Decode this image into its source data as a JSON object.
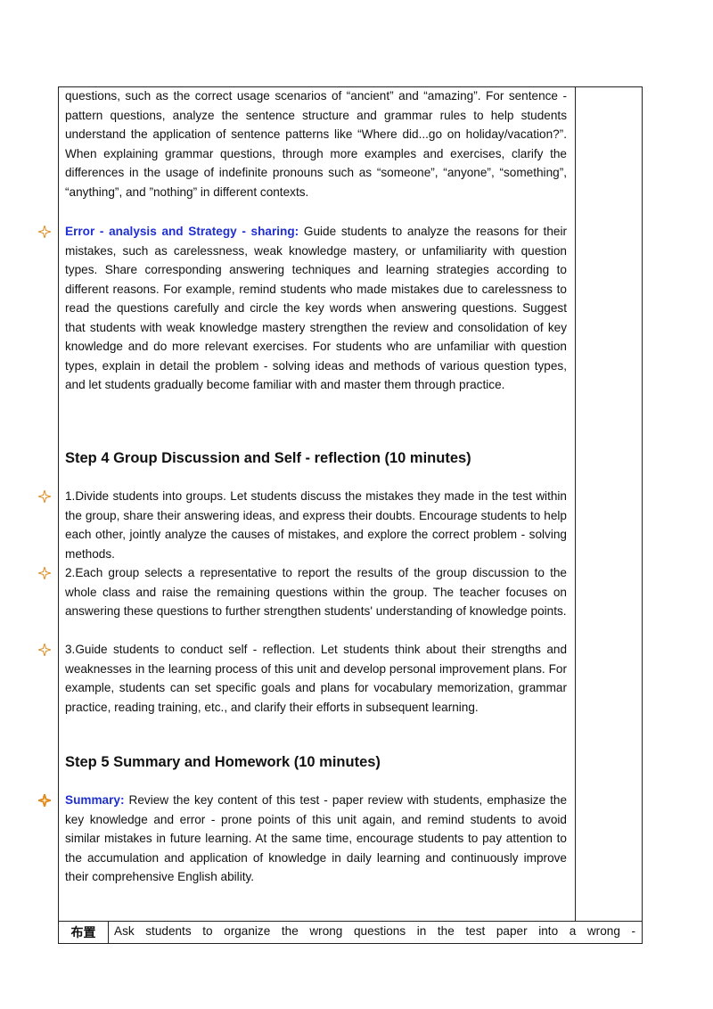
{
  "intro": "questions, such as the correct usage scenarios of “ancient” and “amazing”. For sentence - pattern questions, analyze the sentence structure and grammar rules to help students understand the application of sentence patterns like “Where did...go on holiday/vacation?”. When explaining grammar questions, through more examples and exercises, clarify the differences in the usage of indefinite pronouns such as “someone”, “anyone”, “something”, “anything”, and ”nothing” in different contexts.",
  "error_item": {
    "label": "Error - analysis and Strategy - sharing:",
    "text": "Guide students to analyze the reasons for their mistakes, such as carelessness, weak knowledge mastery, or unfamiliarity with question types. Share corresponding answering techniques and learning strategies according to different reasons. For example, remind students who made mistakes due to carelessness to read the questions carefully and circle the key words when answering questions. Suggest that students with weak knowledge mastery strengthen the review and consolidation of key knowledge and do more relevant exercises. For students who are unfamiliar with question types, explain in detail the problem - solving ideas and methods of various question types, and let students gradually become familiar with and master them through practice."
  },
  "step4": {
    "heading": "Step 4  Group Discussion and Self - reflection (10 minutes)",
    "items": [
      "1.Divide students into groups. Let students discuss the mistakes they made in the test within the group, share their answering ideas, and express their doubts. Encourage students to help each other, jointly analyze the causes of mistakes, and explore the correct problem - solving methods.",
      "2.Each group selects a representative to report the results of the group discussion to the whole class and raise the remaining questions within the group. The teacher focuses on answering these questions to further strengthen students' understanding of knowledge points.",
      "3.Guide students to conduct self - reflection. Let students think about their strengths and weaknesses in the learning process of this unit and develop personal improvement plans. For example, students can set specific goals and plans for vocabulary memorization, grammar practice, reading training, etc., and clarify their efforts in subsequent learning."
    ]
  },
  "step5": {
    "heading": "Step 5  Summary and Homework (10 minutes)",
    "summary": {
      "label": "Summary:",
      "text": "Review the key content of this test - paper review with students, emphasize the key knowledge and error - prone points of this unit again, and remind students to avoid similar mistakes in future learning. At the same time, encourage students to pay attention to the accumulation and application of knowledge in daily learning and continuously improve their comprehensive English ability."
    }
  },
  "homework_row": {
    "label": "布置",
    "text": "Ask students to organize the wrong questions in the test paper into a wrong -"
  }
}
